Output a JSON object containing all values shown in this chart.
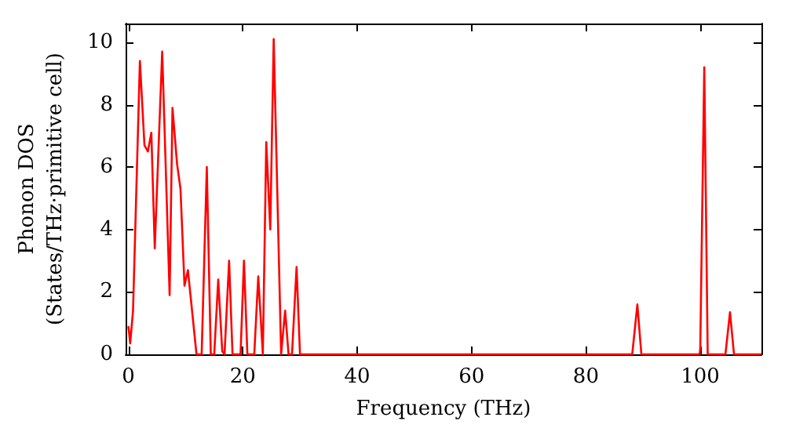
{
  "chart_data": {
    "type": "line",
    "xlabel": "Frequency (THz)",
    "ylabel": "Phonon DOS\n(States/THz·primitive cell)",
    "x": [
      0,
      0.3,
      0.8,
      2.0,
      2.8,
      3.4,
      4.0,
      4.6,
      5.9,
      7.2,
      7.7,
      8.5,
      9.1,
      9.8,
      10.4,
      11.9,
      12.8,
      13.7,
      14.4,
      15.0,
      15.7,
      16.4,
      16.8,
      17.6,
      18.2,
      19.6,
      20.2,
      20.8,
      22.0,
      22.7,
      23.5,
      24.1,
      24.8,
      25.4,
      26.7,
      27.4,
      28.0,
      28.6,
      29.4,
      30.0,
      88.1,
      89.0,
      89.7,
      99.9,
      100.0,
      100.7,
      101.3,
      104.4,
      105.2,
      105.9,
      110.7
    ],
    "series": [
      {
        "color": "#ff0000",
        "values": [
          0.9,
          0.35,
          1.4,
          9.4,
          6.7,
          6.5,
          7.1,
          3.4,
          9.7,
          1.9,
          7.9,
          6.1,
          5.3,
          2.2,
          2.7,
          0,
          0,
          6.0,
          0,
          0,
          2.4,
          0.1,
          0,
          3.0,
          0,
          0,
          3.0,
          0,
          0,
          2.5,
          0,
          6.8,
          4.0,
          10.1,
          0,
          1.4,
          0,
          0,
          2.8,
          0,
          0,
          1.6,
          0,
          0,
          0.2,
          9.2,
          0,
          0,
          1.35,
          0,
          0
        ]
      }
    ],
    "xlim": [
      -0.5,
      110.7
    ],
    "xticks": [
      0,
      20,
      40,
      60,
      80,
      100
    ],
    "ylim": [
      0,
      10.6
    ],
    "yticks": [
      0,
      2,
      4,
      6,
      8,
      10
    ]
  }
}
